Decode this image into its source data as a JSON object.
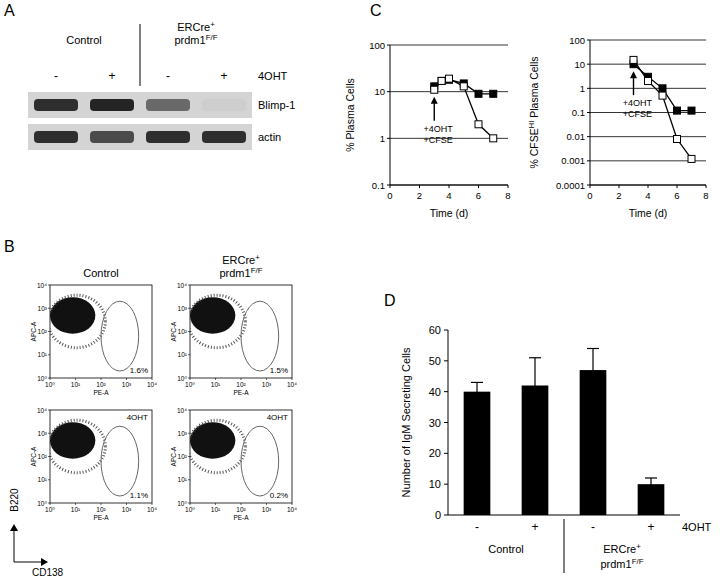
{
  "panel_labels": [
    "A",
    "B",
    "C",
    "D"
  ],
  "blot": {
    "groups": [
      {
        "lines": [
          [
            {
              "text": "Control"
            }
          ]
        ]
      },
      {
        "lines": [
          [
            {
              "text": "ERCre"
            },
            {
              "sup": "+"
            }
          ],
          [
            {
              "text": "prdm1"
            },
            {
              "sup": "F/F"
            }
          ]
        ]
      }
    ],
    "lanes": [
      "-",
      "+",
      "-",
      "+"
    ],
    "treatment": "4OHT",
    "bands": [
      {
        "label": "Blimp-1",
        "levels": [
          0.85,
          0.9,
          0.55,
          0.03
        ]
      },
      {
        "label": "actin",
        "levels": [
          0.85,
          0.7,
          0.85,
          0.85
        ]
      }
    ]
  },
  "flow": {
    "groups": [
      {
        "lines": [
          [
            {
              "text": "Control"
            }
          ]
        ]
      },
      {
        "lines": [
          [
            {
              "text": "ERCre"
            },
            {
              "sup": "+"
            }
          ],
          [
            {
              "text": "prdm1"
            },
            {
              "sup": "F/F"
            }
          ]
        ]
      }
    ],
    "treatment": "4OHT",
    "xlabel": "CD138",
    "ylabel": "B220",
    "channel_x": "PE-A",
    "channel_y": "APC-A",
    "xlim": [
      1,
      10000
    ],
    "ylim": [
      1,
      10000
    ],
    "ticks": [
      {
        "value": 1,
        "label": "10⁰"
      },
      {
        "value": 10,
        "label": "10¹"
      },
      {
        "value": 100,
        "label": "10²"
      },
      {
        "value": 1000,
        "label": "10³"
      },
      {
        "value": 10000,
        "label": "10⁴"
      }
    ],
    "population_x": [
      1,
      60
    ],
    "population_y": [
      80,
      3000
    ],
    "gate_x": [
      100,
      3000
    ],
    "gate_y": [
      2,
      2000
    ],
    "plots": [
      {
        "treated": false,
        "gate": "1.6%"
      },
      {
        "treated": false,
        "gate": "1.5%"
      },
      {
        "treated": true,
        "gate": "1.1%"
      },
      {
        "treated": true,
        "gate": "0.2%"
      }
    ]
  },
  "chart_data": [
    {
      "type": "line",
      "ylabel": "% Plasma Cells",
      "xlabel": "Time (d)",
      "log": "y",
      "grid": true,
      "x": [
        3,
        3.5,
        4,
        5,
        6,
        7
      ],
      "xlim": [
        0,
        8
      ],
      "xticks": [
        0,
        2,
        4,
        6,
        8
      ],
      "ylim": [
        0.1,
        100
      ],
      "yticks": [
        0.1,
        1,
        10,
        100
      ],
      "series": [
        {
          "color": "#000000",
          "marker": "filled-square",
          "values": [
            13,
            17,
            18,
            15,
            9,
            9
          ]
        },
        {
          "color": "#000000",
          "marker": "open-square",
          "values": [
            11,
            17,
            19,
            13,
            2,
            1
          ]
        }
      ],
      "annotations": [
        {
          "x": 3,
          "text": [
            "+4OHT",
            "+CFSE"
          ]
        }
      ]
    },
    {
      "type": "line",
      "ylabel": {
        "lines": [
          [
            {
              "text": "% CFSE"
            },
            {
              "sup": "HI"
            },
            {
              "text": " Plasma Cells"
            }
          ]
        ]
      },
      "xlabel": "Time (d)",
      "log": "y",
      "grid": true,
      "x": [
        3,
        4,
        5,
        6,
        7
      ],
      "xlim": [
        0,
        8
      ],
      "xticks": [
        0,
        2,
        4,
        6,
        8
      ],
      "ylim": [
        0.0001,
        100
      ],
      "yticks": [
        0.0001,
        0.001,
        0.01,
        0.1,
        1,
        10,
        100
      ],
      "series": [
        {
          "color": "#000000",
          "marker": "filled-square",
          "values": [
            10,
            3,
            1,
            0.12,
            0.12
          ]
        },
        {
          "color": "#000000",
          "marker": "open-square",
          "values": [
            15,
            2,
            0.5,
            0.008,
            0.0012
          ]
        }
      ],
      "annotations": [
        {
          "x": 3,
          "text": [
            "+4OHT",
            "+CFSE"
          ]
        }
      ]
    },
    {
      "type": "bar",
      "ylabel": "Number of IgM Secreting Cells",
      "xlabel": "4OHT",
      "categories": [
        "-",
        "+",
        "-",
        "+"
      ],
      "values": [
        40,
        42,
        47,
        10
      ],
      "errors": [
        3,
        9,
        7,
        2
      ],
      "color": "#000000",
      "ylim": [
        0,
        60
      ],
      "yticks": [
        0,
        10,
        20,
        30,
        40,
        50,
        60
      ],
      "groups": [
        {
          "lines": [
            [
              {
                "text": "Control"
              }
            ]
          ]
        },
        {
          "lines": [
            [
              {
                "text": "ERCre"
              },
              {
                "sup": "+"
              }
            ],
            [
              {
                "text": "prdm1"
              },
              {
                "sup": "F/F"
              }
            ]
          ]
        }
      ]
    }
  ]
}
